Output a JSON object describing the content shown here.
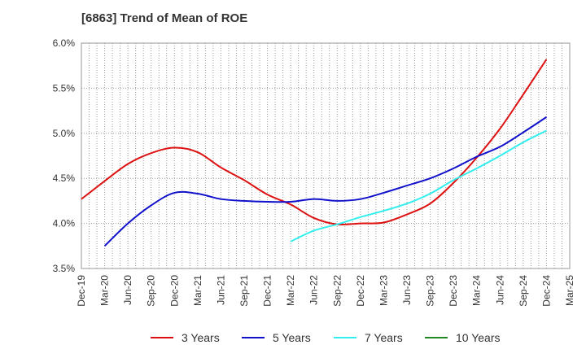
{
  "chart_data": {
    "type": "line",
    "title": "[6863]  Trend of Mean of ROE",
    "xlabel": "",
    "ylabel": "",
    "ylim": [
      3.5,
      6.0
    ],
    "yticks": [
      "3.5%",
      "4.0%",
      "4.5%",
      "5.0%",
      "5.5%",
      "6.0%"
    ],
    "ytick_values": [
      3.5,
      4.0,
      4.5,
      5.0,
      5.5,
      6.0
    ],
    "categories": [
      "Dec-19",
      "Mar-20",
      "Jun-20",
      "Sep-20",
      "Dec-20",
      "Mar-21",
      "Jun-21",
      "Sep-21",
      "Dec-21",
      "Mar-22",
      "Jun-22",
      "Sep-22",
      "Dec-22",
      "Mar-23",
      "Jun-23",
      "Sep-23",
      "Dec-23",
      "Mar-24",
      "Jun-24",
      "Sep-24",
      "Dec-24",
      "Mar-25"
    ],
    "grid": true,
    "legend_position": "bottom",
    "series": [
      {
        "name": "3 Years",
        "color": "#dd1111",
        "values": [
          4.27,
          4.47,
          4.66,
          4.78,
          4.84,
          4.79,
          4.62,
          4.48,
          4.32,
          4.21,
          4.06,
          3.99,
          4.0,
          4.01,
          4.1,
          4.22,
          4.45,
          4.73,
          5.05,
          5.43,
          5.82,
          null
        ]
      },
      {
        "name": "5 Years",
        "color": "#1111cc",
        "values": [
          null,
          3.75,
          4.0,
          4.2,
          4.34,
          4.33,
          4.27,
          4.25,
          4.24,
          4.24,
          4.27,
          4.25,
          4.27,
          4.34,
          4.42,
          4.5,
          4.61,
          4.74,
          4.85,
          5.01,
          5.18,
          null
        ]
      },
      {
        "name": "7 Years",
        "color": "#33eeee",
        "values": [
          null,
          null,
          null,
          null,
          null,
          null,
          null,
          null,
          null,
          3.8,
          3.92,
          3.99,
          4.07,
          4.14,
          4.22,
          4.33,
          4.48,
          4.61,
          4.75,
          4.9,
          5.03,
          null
        ]
      },
      {
        "name": "10 Years",
        "color": "#228822",
        "values": [
          null,
          null,
          null,
          null,
          null,
          null,
          null,
          null,
          null,
          null,
          null,
          null,
          null,
          null,
          null,
          null,
          null,
          null,
          null,
          null,
          null,
          null
        ]
      }
    ]
  }
}
